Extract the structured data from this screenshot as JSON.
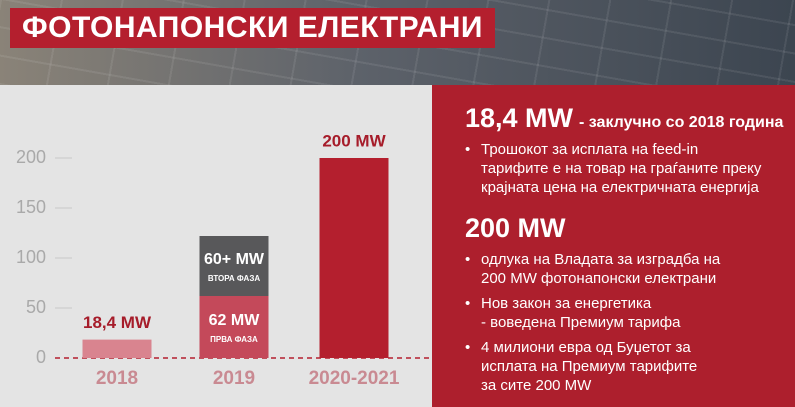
{
  "chart_data": {
    "type": "bar",
    "stacked": true,
    "title": "ФОТОНАПОНСКИ ЕЛЕКТРАНИ",
    "categories": [
      "2018",
      "2019",
      "2020-2021"
    ],
    "series": [
      {
        "name": "ПРВА ФАЗА",
        "colors": [
          "#d9848f",
          "#c4495a",
          "#b41f2e"
        ],
        "values": [
          18.4,
          62,
          200
        ],
        "value_labels": [
          "18,4 MW",
          "62 MW",
          "200 MW"
        ]
      },
      {
        "name": "ВТОРА ФАЗА",
        "colors": [
          null,
          "#58585a",
          null
        ],
        "values": [
          null,
          60,
          null
        ],
        "value_labels": [
          null,
          "60+ MW",
          null
        ]
      }
    ],
    "ylim": [
      0,
      200
    ],
    "yticks": [
      0,
      50,
      100,
      150,
      200
    ],
    "grid": true
  },
  "panel": {
    "sections": [
      {
        "heading": "18,4 MW",
        "suffix": "- заклучно со 2018 година",
        "bullets": [
          [
            "Трошокот за исплата на feed-in",
            "тарифите е на товар на граѓаните преку",
            "крајната цена на електричната енергија"
          ]
        ]
      },
      {
        "heading": "200 MW",
        "bullets": [
          [
            "одлука на Владата за изградба на",
            "200 MW фотонапонски електрани"
          ],
          [
            "Нов закон за енергетика",
            "- воведена Премиум тарифа"
          ],
          [
            "4 милиони евра од Буџетот за",
            "исплата на Премиум тарифите",
            "за сите 200 MW"
          ]
        ]
      }
    ]
  }
}
